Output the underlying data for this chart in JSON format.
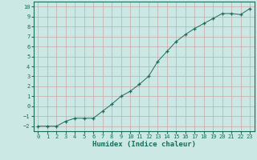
{
  "x": [
    0,
    1,
    2,
    3,
    4,
    5,
    6,
    7,
    8,
    9,
    10,
    11,
    12,
    13,
    14,
    15,
    16,
    17,
    18,
    19,
    20,
    21,
    22,
    23
  ],
  "y": [
    -2.0,
    -2.0,
    -2.0,
    -1.5,
    -1.2,
    -1.2,
    -1.2,
    -0.5,
    0.2,
    1.0,
    1.5,
    2.2,
    3.0,
    4.5,
    5.5,
    6.5,
    7.2,
    7.8,
    8.3,
    8.8,
    9.3,
    9.3,
    9.2,
    9.8
  ],
  "xlim": [
    -0.5,
    23.5
  ],
  "ylim": [
    -2.5,
    10.5
  ],
  "yticks": [
    -2,
    -1,
    0,
    1,
    2,
    3,
    4,
    5,
    6,
    7,
    8,
    9,
    10
  ],
  "xticks": [
    0,
    1,
    2,
    3,
    4,
    5,
    6,
    7,
    8,
    9,
    10,
    11,
    12,
    13,
    14,
    15,
    16,
    17,
    18,
    19,
    20,
    21,
    22,
    23
  ],
  "xlabel": "Humidex (Indice chaleur)",
  "line_color": "#1a6b5a",
  "marker_color": "#1a6b5a",
  "bg_color": "#cce8e4",
  "grid_color": "#c8a8a8",
  "tick_fontsize": 5.0,
  "xlabel_fontsize": 6.5,
  "marker_size": 3.0,
  "line_width": 0.7
}
